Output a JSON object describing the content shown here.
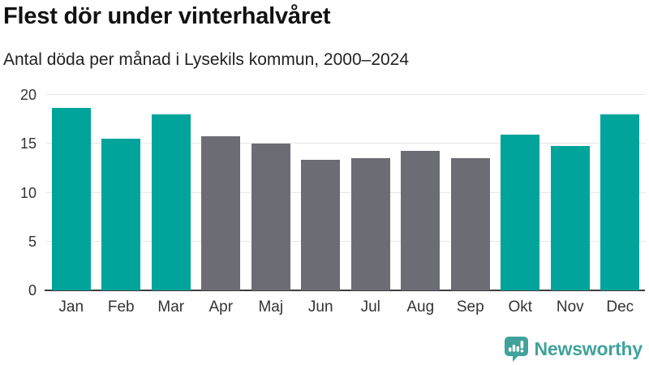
{
  "title": "Flest dör under vinterhalvåret",
  "subtitle": "Antal döda per månad i Lysekils kommun, 2000–2024",
  "chart_data": {
    "type": "bar",
    "title": "Flest dör under vinterhalvåret",
    "subtitle": "Antal döda per månad i Lysekils kommun, 2000–2024",
    "categories": [
      "Jan",
      "Feb",
      "Mar",
      "Apr",
      "Maj",
      "Jun",
      "Jul",
      "Aug",
      "Sep",
      "Okt",
      "Nov",
      "Dec"
    ],
    "values": [
      18.7,
      15.5,
      18.0,
      15.8,
      15.0,
      13.4,
      13.5,
      14.3,
      13.5,
      15.9,
      14.8,
      18.0
    ],
    "bar_color_keys": [
      "teal",
      "teal",
      "teal",
      "gray",
      "gray",
      "gray",
      "gray",
      "gray",
      "gray",
      "teal",
      "teal",
      "teal"
    ],
    "xlabel": "",
    "ylabel": "",
    "ylim": [
      0,
      20
    ],
    "yticks": [
      0,
      5,
      10,
      15,
      20
    ],
    "grid": true,
    "legend": "none",
    "colors": {
      "teal": "#00a49b",
      "gray": "#6c6c74",
      "gridline": "#e7e7e7",
      "axis_line": "#3d3d3d"
    }
  },
  "footer": {
    "brand": "Newsworthy",
    "brand_color": "#3fa39b",
    "logo_icon": "newsworthy-speech-bubble-chart-icon"
  }
}
